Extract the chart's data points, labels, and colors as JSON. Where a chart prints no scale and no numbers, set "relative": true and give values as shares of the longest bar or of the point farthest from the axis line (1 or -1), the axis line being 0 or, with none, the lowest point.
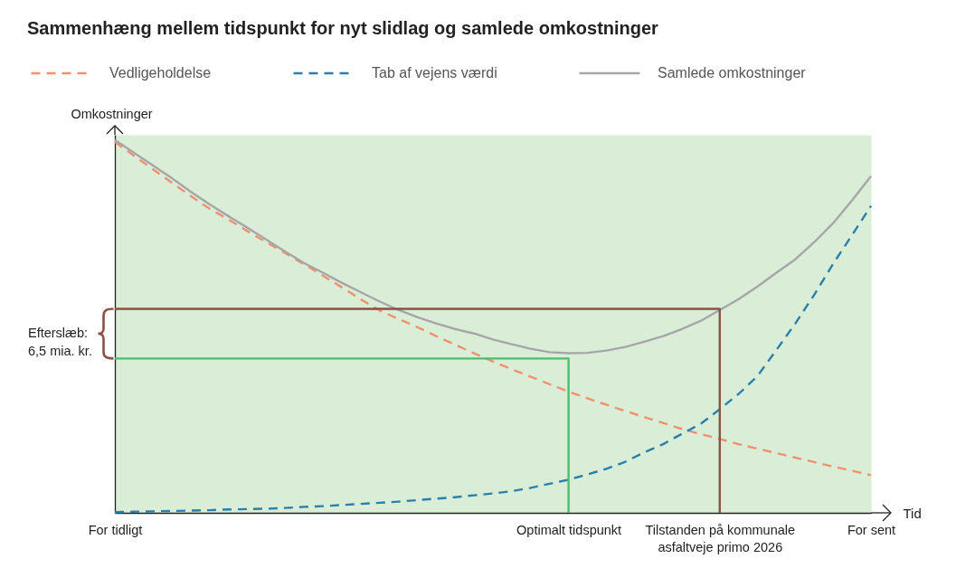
{
  "chart_data": {
    "type": "line",
    "title": "Sammenhæng mellem tidspunkt for nyt slidlag og samlede omkostninger",
    "xlabel": "Tid",
    "ylabel": "Omkostninger",
    "relative": true,
    "legend": "top",
    "categories": [
      "For tidligt",
      null,
      null,
      null,
      null,
      null,
      null,
      null,
      null,
      null,
      null,
      null,
      null,
      null,
      null,
      null,
      null,
      null,
      null,
      null,
      null,
      null,
      null,
      null,
      "Optimalt tidspunkt",
      null,
      null,
      null,
      null,
      null,
      null,
      null,
      "Tilstanden på kommunale\nasfaltveje primo 2026",
      null,
      null,
      null,
      null,
      null,
      null,
      null,
      "For sent"
    ],
    "series": [
      {
        "name": "Vedligeholdelse",
        "color": "#ef916f",
        "line_style": "dashed",
        "values": [
          0.995,
          0.958,
          0.922,
          0.886,
          0.85,
          0.816,
          0.787,
          0.756,
          0.726,
          0.697,
          0.667,
          0.636,
          0.605,
          0.573,
          0.543,
          0.52,
          0.498,
          0.474,
          0.451,
          0.428,
          0.406,
          0.385,
          0.365,
          0.345,
          0.325,
          0.307,
          0.29,
          0.273,
          0.257,
          0.241,
          0.225,
          0.211,
          0.198,
          0.184,
          0.172,
          0.16,
          0.148,
          0.136,
          0.124,
          0.113,
          0.101
        ]
      },
      {
        "name": "Tab af vejens værdi",
        "color": "#2a7fab",
        "line_style": "dashed",
        "values": [
          0.002,
          0.003,
          0.004,
          0.005,
          0.006,
          0.007,
          0.009,
          0.01,
          0.011,
          0.013,
          0.016,
          0.018,
          0.021,
          0.024,
          0.027,
          0.03,
          0.034,
          0.038,
          0.042,
          0.047,
          0.052,
          0.058,
          0.067,
          0.078,
          0.089,
          0.103,
          0.118,
          0.137,
          0.162,
          0.184,
          0.212,
          0.239,
          0.278,
          0.319,
          0.367,
          0.437,
          0.508,
          0.585,
          0.668,
          0.745,
          0.823
        ]
      },
      {
        "name": "Samlede omkostninger",
        "color": "#a6a6a9",
        "line_style": "solid",
        "values": [
          1.0,
          0.966,
          0.932,
          0.898,
          0.862,
          0.828,
          0.796,
          0.765,
          0.733,
          0.701,
          0.67,
          0.644,
          0.617,
          0.592,
          0.567,
          0.544,
          0.525,
          0.508,
          0.493,
          0.481,
          0.465,
          0.452,
          0.44,
          0.431,
          0.428,
          0.429,
          0.435,
          0.445,
          0.459,
          0.474,
          0.493,
          0.515,
          0.544,
          0.573,
          0.607,
          0.644,
          0.68,
          0.726,
          0.777,
          0.838,
          0.903
        ]
      },
      {
        "color": "#4dbd6c",
        "line_style": "solid",
        "x": [
          "For tidligt",
          "Optimalt tidspunkt",
          "Optimalt tidspunkt"
        ],
        "values": [
          0.414,
          0.414,
          0
        ]
      },
      {
        "color": "#8c5045",
        "line_style": "solid",
        "x": [
          "For tidligt",
          "Tilstanden på kommunale\nasfaltveje primo 2026",
          "Tilstanden på kommunale\nasfaltveje primo 2026"
        ],
        "values": [
          0.547,
          0.547,
          0
        ]
      }
    ],
    "annotations": [
      "Efterslæb:\n6,5 mia. kr."
    ]
  }
}
